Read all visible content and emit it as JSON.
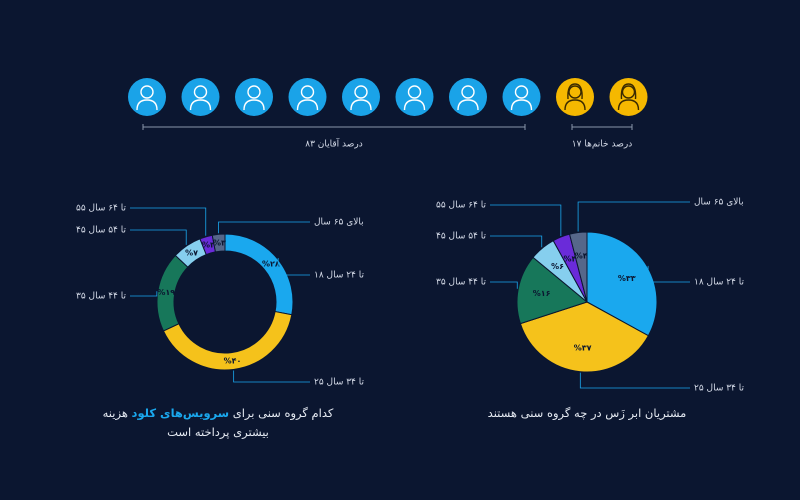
{
  "header": {
    "men": {
      "count": 8,
      "label": "۸۳ درصد آقایان",
      "color": "#1aa3e8"
    },
    "women": {
      "count": 2,
      "label": "۱۷ درصد خانم‌ها",
      "color": "#f5b800"
    }
  },
  "chart_data": [
    {
      "type": "donut",
      "title": {
        "before": "کدام گروه سنی برای",
        "highlight": "سرویس‌های کلود",
        "after": "هزینه بیشتری پرداخته است"
      },
      "categories": [
        "۱۸ تا ۲۴ سال",
        "۲۵ تا ۳۴ سال",
        "۳۵ تا ۴۴ سال",
        "۴۵ تا ۵۴ سال",
        "۵۵ تا ۶۴ سال",
        "بالای ۶۵ سال"
      ],
      "values": [
        28,
        40,
        19,
        7,
        3,
        3
      ],
      "value_labels": [
        "%۲۸",
        "%۴۰",
        "%۱۹",
        "%۷",
        "%۳",
        "%۳"
      ],
      "colors": [
        "#1aa8ee",
        "#f5c21b",
        "#17775a",
        "#86cfee",
        "#6a2bd9",
        "#56678a"
      ]
    },
    {
      "type": "pie",
      "title": "مشتریان ابر زَس در چه گروه سنی هستند",
      "categories": [
        "۱۸ تا ۲۴ سال",
        "۲۵ تا ۳۴ سال",
        "۳۵ تا ۴۴ سال",
        "۴۵ تا ۵۴ سال",
        "۵۵ تا ۶۴ سال",
        "بالای ۶۵ سال"
      ],
      "values": [
        33,
        37,
        16,
        6,
        4,
        4
      ],
      "value_labels": [
        "%۳۳",
        "%۳۷",
        "%۱۶",
        "%۶",
        "%۴",
        "%۴"
      ],
      "colors": [
        "#1aa8ee",
        "#f5c21b",
        "#17775a",
        "#86cfee",
        "#6a2bd9",
        "#56678a"
      ]
    }
  ]
}
